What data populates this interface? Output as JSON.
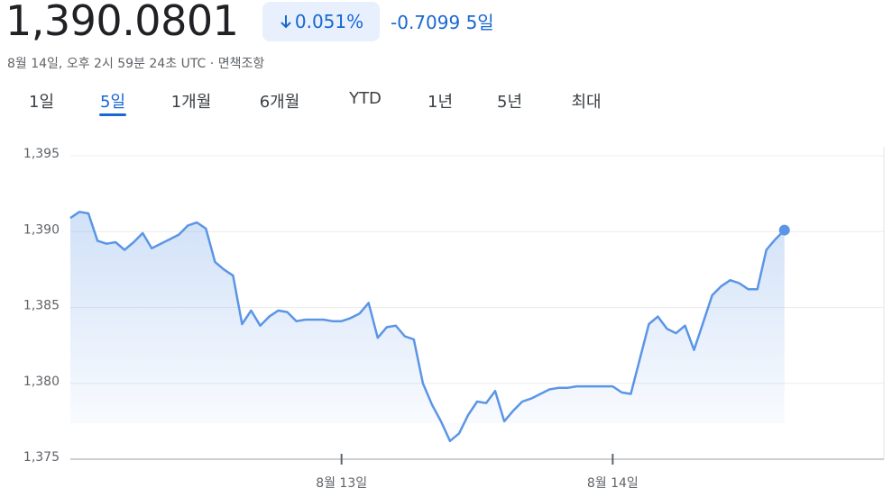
{
  "header": {
    "price": "1,390.0801",
    "change_percent": "0.051%",
    "change": "-0.7099",
    "period": "5일",
    "timestamp": "8월 14일, 오후 2시 59분 24초 UTC",
    "separator": "·",
    "disclaimer": "면책조항"
  },
  "tabs": {
    "items": [
      "1일",
      "5일",
      "1개월",
      "6개월",
      "YTD",
      "1년",
      "5년",
      "최대"
    ],
    "selected": 1
  },
  "chart_data": {
    "type": "line",
    "color": "#5b95e6",
    "area": true,
    "end_marker": true,
    "grid": true,
    "values": [
      1390.9,
      1391.3,
      1391.2,
      1389.4,
      1389.2,
      1389.3,
      1388.8,
      1389.3,
      1389.9,
      1388.9,
      1389.2,
      1389.5,
      1389.8,
      1390.4,
      1390.6,
      1390.2,
      1388.0,
      1387.5,
      1387.1,
      1383.9,
      1384.8,
      1383.8,
      1384.4,
      1384.8,
      1384.7,
      1384.1,
      1384.2,
      1384.2,
      1384.2,
      1384.1,
      1384.1,
      1384.3,
      1384.6,
      1385.3,
      1383.0,
      1383.7,
      1383.8,
      1383.1,
      1382.9,
      1380.0,
      1378.6,
      1377.5,
      1376.2,
      1376.7,
      1377.9,
      1378.8,
      1378.7,
      1379.5,
      1377.5,
      1378.2,
      1378.8,
      1379.0,
      1379.3,
      1379.6,
      1379.7,
      1379.7,
      1379.8,
      1379.8,
      1379.8,
      1379.8,
      1379.8,
      1379.4,
      1379.3,
      1381.6,
      1383.9,
      1384.4,
      1383.6,
      1383.3,
      1383.8,
      1382.2,
      1384.0,
      1385.8,
      1386.4,
      1386.8,
      1386.6,
      1386.2,
      1386.2,
      1388.8,
      1389.5,
      1390.1
    ],
    "xlim": [
      0,
      90
    ],
    "xticks": [
      {
        "value": 30,
        "label": "8월 13일"
      },
      {
        "value": 60,
        "label": "8월 14일"
      }
    ],
    "ylim": [
      1375,
      1395
    ],
    "yticks": [
      {
        "value": 1375,
        "label": "1,375"
      },
      {
        "value": 1380,
        "label": "1,380"
      },
      {
        "value": 1385,
        "label": "1,385"
      },
      {
        "value": 1390,
        "label": "1,390"
      },
      {
        "value": 1395,
        "label": "1,395"
      }
    ]
  }
}
